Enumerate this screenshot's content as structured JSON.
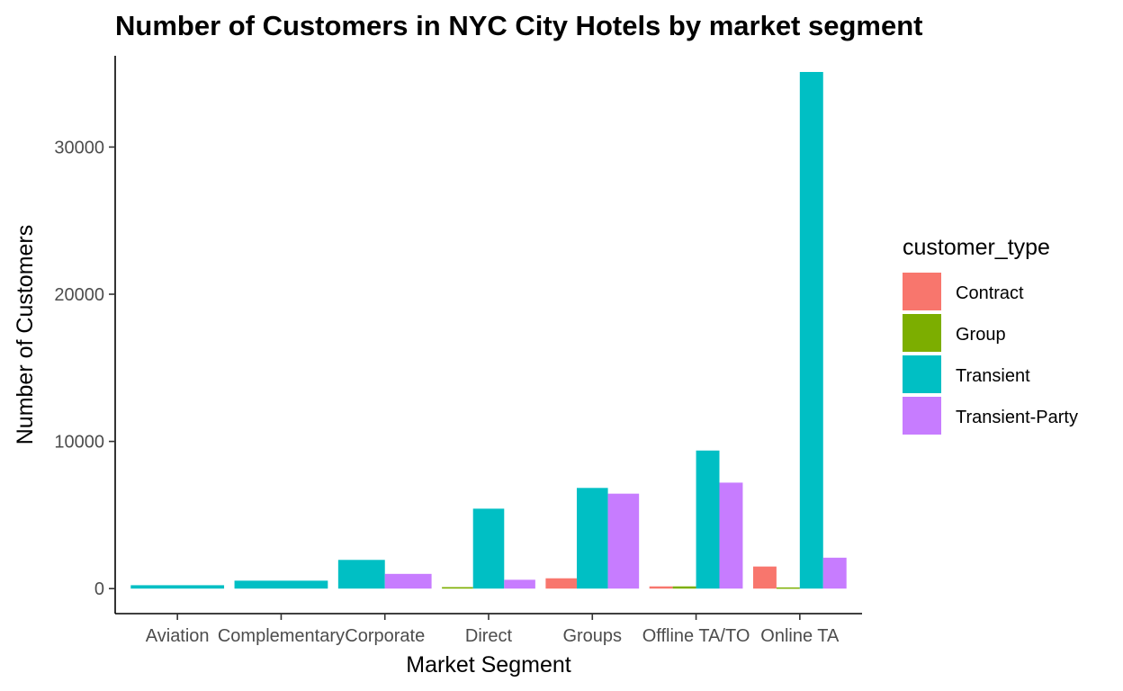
{
  "chart_data": {
    "type": "bar",
    "title": "Number of Customers in NYC City Hotels by market segment",
    "xlabel": "Market Segment",
    "ylabel": "Number of Customers",
    "categories": [
      "Aviation",
      "Complementary",
      "Corporate",
      "Direct",
      "Groups",
      "Offline TA/TO",
      "Online TA"
    ],
    "ylim": [
      -1700,
      36200
    ],
    "yticks": [
      0,
      10000,
      20000,
      30000
    ],
    "ytick_labels": [
      "0",
      "10000",
      "20000",
      "30000"
    ],
    "legend_title": "customer_type",
    "legend_position": "right",
    "grid": false,
    "series": [
      {
        "name": "Contract",
        "color": "#F8766D",
        "values": [
          0,
          0,
          0,
          0,
          700,
          150,
          1500
        ]
      },
      {
        "name": "Group",
        "color": "#7CAE00",
        "values": [
          0,
          0,
          0,
          100,
          0,
          150,
          80
        ]
      },
      {
        "name": "Transient",
        "color": "#00BFC4",
        "values": [
          230,
          540,
          1950,
          5430,
          6840,
          9380,
          35100
        ]
      },
      {
        "name": "Transient-Party",
        "color": "#C77CFF",
        "values": [
          0,
          0,
          1000,
          600,
          6450,
          7200,
          2100
        ]
      }
    ],
    "bars_present": [
      [
        false,
        false,
        true,
        false
      ],
      [
        false,
        false,
        true,
        false
      ],
      [
        false,
        false,
        true,
        true
      ],
      [
        false,
        true,
        true,
        true
      ],
      [
        true,
        false,
        true,
        true
      ],
      [
        true,
        true,
        true,
        true
      ],
      [
        true,
        true,
        true,
        true
      ]
    ]
  }
}
